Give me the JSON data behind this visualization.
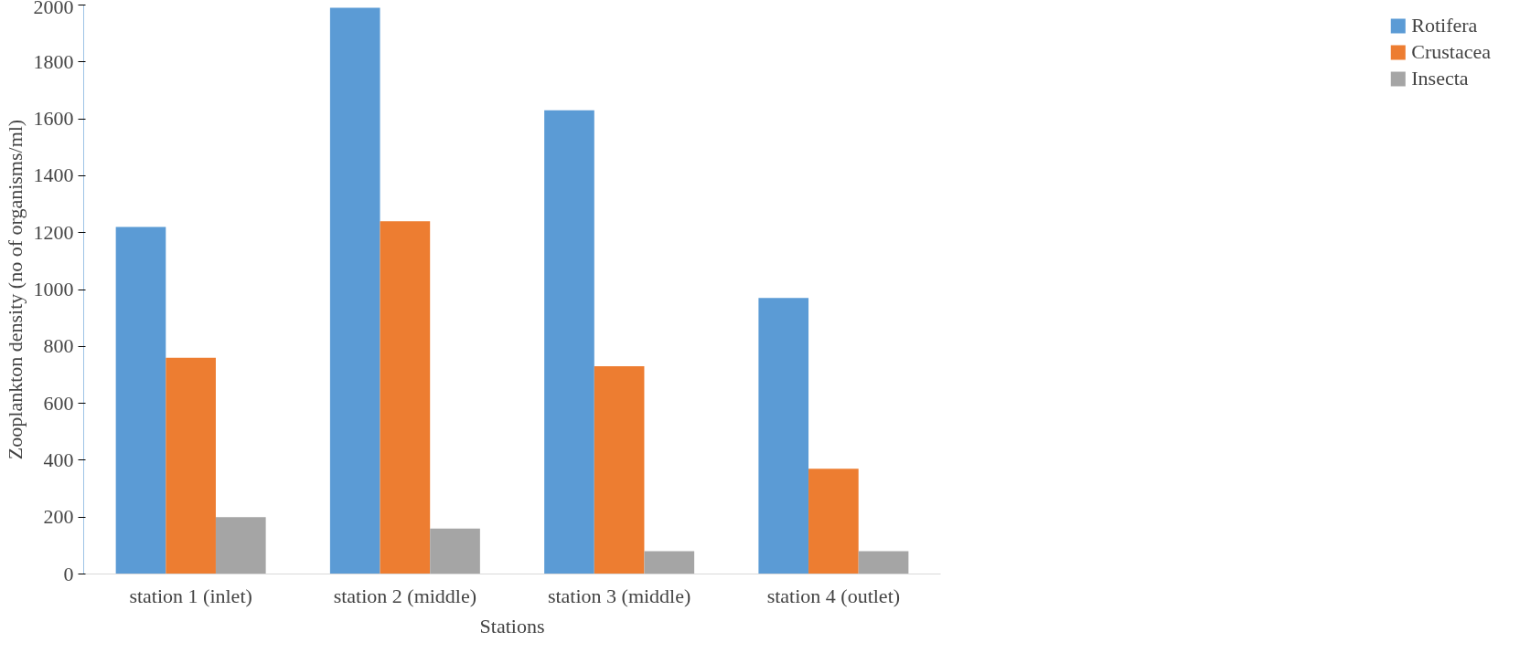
{
  "chart_data": {
    "type": "bar",
    "xlabel": "Stations",
    "ylabel": "Zooplankton density (no of organisms/ml)",
    "categories": [
      "station 1 (inlet)",
      "station 2 (middle)",
      "station 3 (middle)",
      "station 4 (outlet)"
    ],
    "series": [
      {
        "name": "Rotifera",
        "color": "#5b9bd5",
        "values": [
          1220,
          1990,
          1630,
          970
        ]
      },
      {
        "name": "Crustacea",
        "color": "#ed7d31",
        "values": [
          760,
          1240,
          730,
          370
        ]
      },
      {
        "name": "Insecta",
        "color": "#a5a5a5",
        "values": [
          200,
          160,
          80,
          80
        ]
      }
    ],
    "ylim": [
      0,
      2000
    ],
    "yticks": [
      0,
      200,
      400,
      600,
      800,
      1000,
      1200,
      1400,
      1600,
      1800,
      2000
    ],
    "grid": false,
    "legend": "right"
  }
}
